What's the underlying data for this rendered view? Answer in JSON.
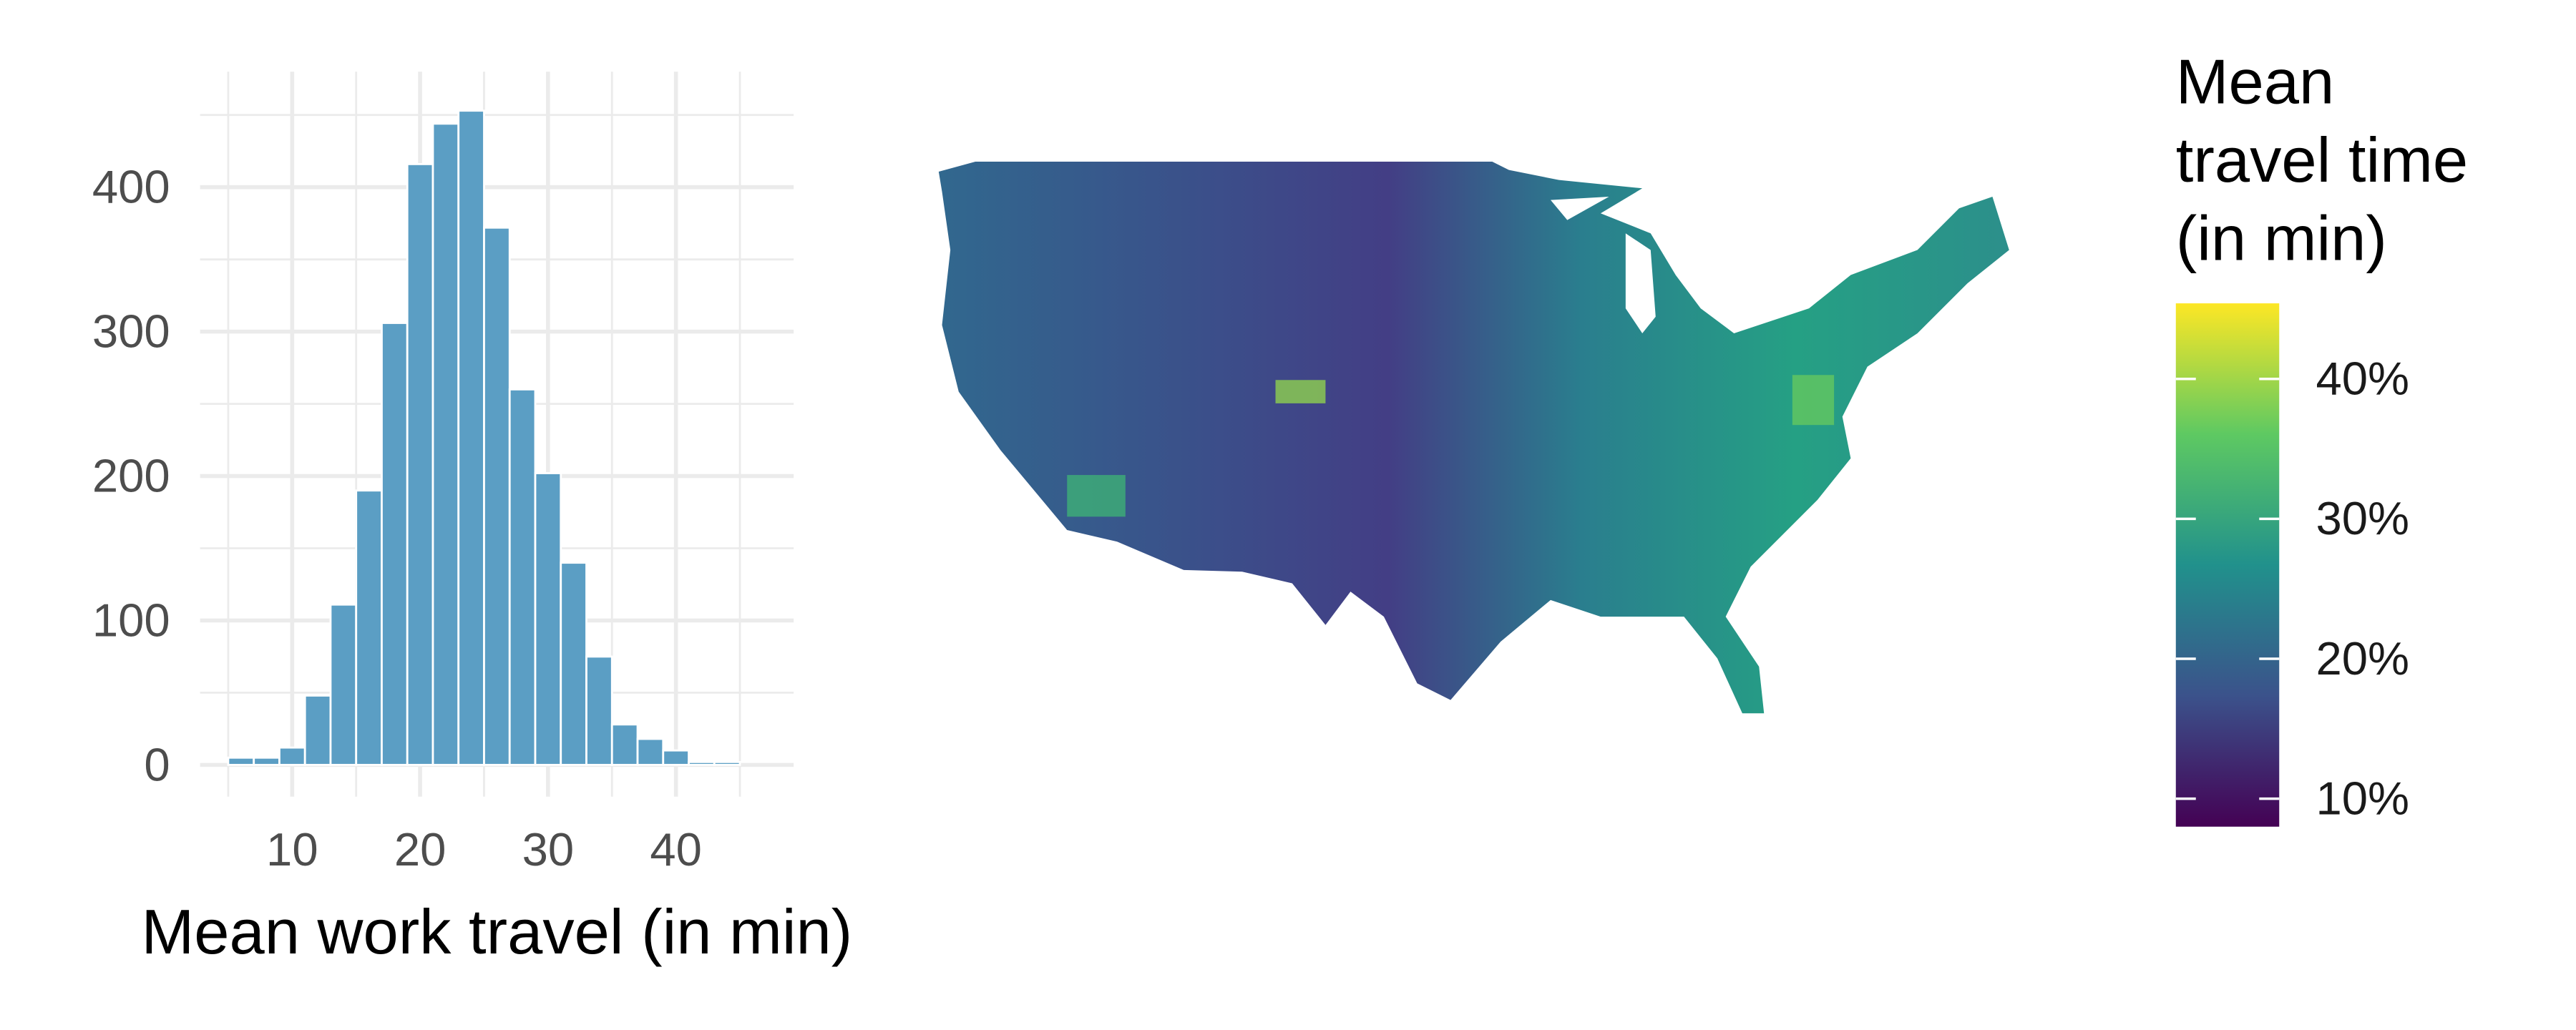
{
  "chart_data": {
    "type": "histogram",
    "xlabel": "Mean work travel (in min)",
    "bins": [
      5,
      7,
      9,
      11,
      13,
      15,
      17,
      19,
      21,
      23,
      25,
      27,
      29,
      31,
      33,
      35,
      37,
      39,
      41,
      43,
      45
    ],
    "values": [
      5,
      5,
      12,
      48,
      111,
      190,
      306,
      416,
      444,
      453,
      372,
      260,
      202,
      140,
      75,
      28,
      18,
      10,
      2,
      2
    ],
    "color": "#5b9ec4",
    "xlim": [
      2.8,
      49.2
    ],
    "ylim": [
      -22,
      480
    ],
    "xticks": [
      10,
      20,
      30,
      40
    ],
    "yticks": [
      0,
      100,
      200,
      300,
      400
    ],
    "grid": true,
    "legend": {
      "title": [
        "Mean",
        "travel time",
        "(in min)"
      ],
      "colormap": [
        "#440154",
        "#3b528b",
        "#21918c",
        "#5ec962",
        "#fde725"
      ],
      "lim": [
        8,
        45.4
      ],
      "ticks": [
        {
          "value": 10,
          "label": "10%"
        },
        {
          "value": 20,
          "label": "20%"
        },
        {
          "value": 30,
          "label": "30%"
        },
        {
          "value": 40,
          "label": "40%"
        }
      ]
    }
  }
}
